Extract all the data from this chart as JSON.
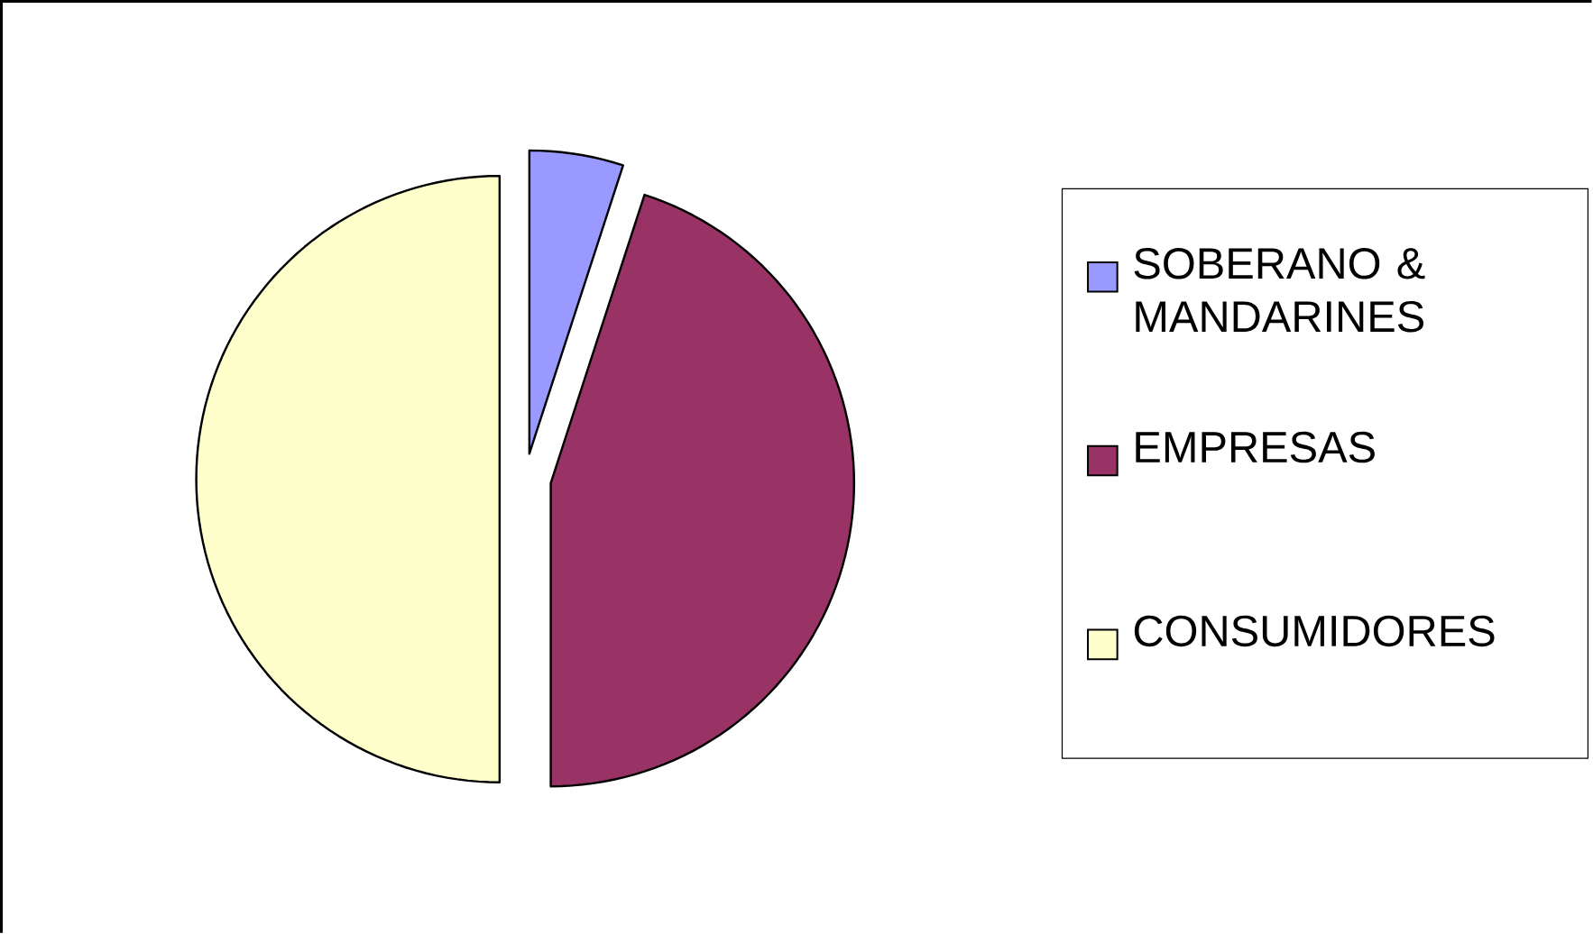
{
  "chart_data": {
    "type": "pie",
    "categories": [
      "SOBERANO & MANDARINES",
      "EMPRESAS",
      "CONSUMIDORES"
    ],
    "values": [
      5,
      45,
      50
    ],
    "colors": [
      "#9999ff",
      "#993366",
      "#ffffcc"
    ],
    "legend": "right"
  }
}
